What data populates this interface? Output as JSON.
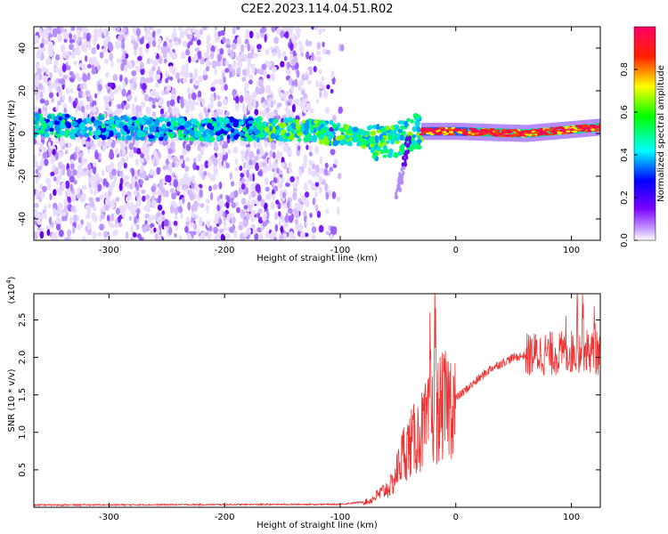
{
  "title": "C2E2.2023.114.04.51.R02",
  "chart_data": [
    {
      "type": "heatmap",
      "title": "C2E2.2023.114.04.51.R02",
      "xlabel": "Height of straight line (km)",
      "ylabel": "Frequency (Hz)",
      "xlim": [
        -365,
        125
      ],
      "ylim": [
        -50,
        50
      ],
      "xticks": [
        -300,
        -200,
        -100,
        0,
        100
      ],
      "xtick_labels": [
        "-300",
        "-200",
        "-100",
        "0",
        "100"
      ],
      "yticks": [
        -40,
        -20,
        0,
        20,
        40
      ],
      "ytick_labels": [
        "-40",
        "-20",
        "0",
        "20",
        "40"
      ],
      "colorbar": {
        "label": "Normalized spectral amplitude",
        "range": [
          0,
          1
        ],
        "ticks": [
          0,
          0.2,
          0.4,
          0.6,
          0.8
        ],
        "tick_labels": [
          "0.0",
          "0.2",
          "0.4",
          "0.6",
          "0.8"
        ],
        "colors": [
          "#ffffff",
          "#7a00ff",
          "#0000ff",
          "#00ffff",
          "#00ff00",
          "#ffff00",
          "#ff0000",
          "#ff0066"
        ]
      },
      "band_center": [
        {
          "x": -365,
          "f": 4
        },
        {
          "x": -250,
          "f": 2
        },
        {
          "x": -170,
          "f": 2
        },
        {
          "x": -120,
          "f": 1
        },
        {
          "x": -90,
          "f": -1
        },
        {
          "x": -70,
          "f": -4
        },
        {
          "x": -50,
          "f": -3
        },
        {
          "x": -40,
          "f": 0
        },
        {
          "x": -30,
          "f": 1
        },
        {
          "x": 0,
          "f": 1
        },
        {
          "x": 60,
          "f": 0
        },
        {
          "x": 125,
          "f": 3
        }
      ]
    },
    {
      "type": "line",
      "xlabel": "Height of straight line (km)",
      "ylabel": "SNR (10 * v/v)",
      "y_scale_label": "(x10",
      "y_scale_exp": "4",
      "y_scale_close": ")",
      "xlim": [
        -365,
        125
      ],
      "ylim": [
        0,
        2.85
      ],
      "xticks": [
        -300,
        -200,
        -100,
        0,
        100
      ],
      "xtick_labels": [
        "-300",
        "-200",
        "-100",
        "0",
        "100"
      ],
      "yticks": [
        0.5,
        1.0,
        1.5,
        2.0,
        2.5
      ],
      "ytick_labels": [
        "0.5",
        "1.0",
        "1.5",
        "2.0",
        "2.5"
      ],
      "series": [
        {
          "name": "SNR",
          "color": "#ee3333",
          "envelope": [
            {
              "x": -365,
              "y": 0.03
            },
            {
              "x": -100,
              "y": 0.04
            },
            {
              "x": -75,
              "y": 0.08
            },
            {
              "x": -55,
              "y": 0.3
            },
            {
              "x": -45,
              "y": 0.75
            },
            {
              "x": -30,
              "y": 1.0
            },
            {
              "x": -15,
              "y": 1.3
            },
            {
              "x": 0,
              "y": 1.45
            },
            {
              "x": 15,
              "y": 1.65
            },
            {
              "x": 30,
              "y": 1.85
            },
            {
              "x": 50,
              "y": 2.0
            },
            {
              "x": 70,
              "y": 2.05
            },
            {
              "x": 90,
              "y": 2.05
            },
            {
              "x": 110,
              "y": 2.1
            },
            {
              "x": 125,
              "y": 2.05
            }
          ],
          "peaks": [
            {
              "x": -18,
              "y": 2.45
            },
            {
              "x": -22,
              "y": 2.15
            },
            {
              "x": 95,
              "y": 2.3
            },
            {
              "x": 105,
              "y": 2.75
            },
            {
              "x": 110,
              "y": 2.8
            },
            {
              "x": 120,
              "y": 2.6
            }
          ]
        }
      ]
    }
  ]
}
